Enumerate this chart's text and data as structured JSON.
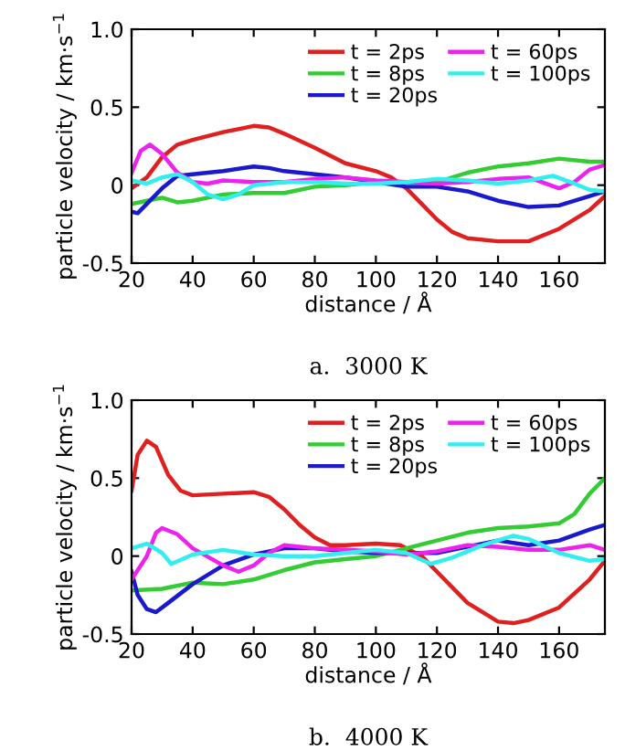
{
  "chart_data": [
    {
      "type": "line",
      "xlabel": "distance / Å",
      "ylabel": "particle velocity / km·s$^{−1}$",
      "annotations": [
        "a.  3000 K"
      ],
      "xlim": [
        20,
        175
      ],
      "xticks": [
        20,
        40,
        60,
        80,
        100,
        120,
        140,
        160
      ],
      "ylim": [
        -0.5,
        1.0
      ],
      "yticks": [
        -0.5,
        0,
        0.5,
        {
          "value": 1.0,
          "label": "1.0"
        }
      ],
      "legend": "top right",
      "grid": false,
      "marker": "none",
      "line_style": "solid",
      "series": [
        {
          "name": "t = 2ps",
          "color": "#e02020",
          "x": [
            20,
            25,
            30,
            35,
            40,
            50,
            60,
            65,
            70,
            80,
            90,
            100,
            105,
            110,
            115,
            120,
            125,
            130,
            140,
            150,
            160,
            170,
            175
          ],
          "values": [
            -0.02,
            0.05,
            0.18,
            0.26,
            0.29,
            0.34,
            0.38,
            0.37,
            0.33,
            0.24,
            0.14,
            0.09,
            0.05,
            -0.02,
            -0.12,
            -0.22,
            -0.3,
            -0.34,
            -0.36,
            -0.36,
            -0.28,
            -0.16,
            -0.07
          ]
        },
        {
          "name": "t = 8ps",
          "color": "#33cc33",
          "x": [
            20,
            25,
            30,
            35,
            40,
            50,
            60,
            70,
            80,
            90,
            100,
            110,
            120,
            130,
            140,
            150,
            160,
            170,
            175
          ],
          "values": [
            -0.12,
            -0.1,
            -0.08,
            -0.11,
            -0.1,
            -0.06,
            -0.05,
            -0.05,
            -0.01,
            0.0,
            0.02,
            0.02,
            0.02,
            0.08,
            0.12,
            0.14,
            0.17,
            0.15,
            0.15
          ]
        },
        {
          "name": "t = 20ps",
          "color": "#1a1acc",
          "x": [
            20,
            22,
            25,
            30,
            35,
            40,
            50,
            60,
            65,
            70,
            80,
            90,
            100,
            110,
            120,
            130,
            140,
            150,
            160,
            170,
            175
          ],
          "values": [
            -0.17,
            -0.18,
            -0.12,
            -0.02,
            0.06,
            0.07,
            0.09,
            0.12,
            0.11,
            0.09,
            0.07,
            0.05,
            0.02,
            -0.01,
            -0.01,
            -0.04,
            -0.1,
            -0.14,
            -0.13,
            -0.07,
            -0.04
          ]
        },
        {
          "name": "t = 60ps",
          "color": "#ee22ee",
          "x": [
            20,
            23,
            26,
            30,
            35,
            40,
            45,
            50,
            60,
            70,
            80,
            90,
            100,
            110,
            120,
            130,
            140,
            150,
            160,
            165,
            170,
            175
          ],
          "values": [
            0.08,
            0.22,
            0.26,
            0.2,
            0.08,
            0.02,
            0.01,
            0.03,
            0.02,
            0.02,
            0.04,
            0.05,
            0.03,
            0.02,
            0.01,
            0.02,
            0.04,
            0.05,
            -0.02,
            0.02,
            0.1,
            0.13
          ]
        },
        {
          "name": "t = 100ps",
          "color": "#33eeee",
          "x": [
            20,
            25,
            30,
            35,
            40,
            45,
            50,
            55,
            60,
            70,
            80,
            90,
            100,
            110,
            120,
            130,
            140,
            150,
            158,
            165,
            170,
            175
          ],
          "values": [
            0.03,
            0.01,
            0.05,
            0.07,
            0.02,
            -0.06,
            -0.09,
            -0.06,
            0.0,
            0.02,
            0.02,
            0.01,
            0.01,
            0.02,
            0.04,
            0.03,
            0.01,
            0.03,
            0.06,
            0.01,
            -0.03,
            -0.04
          ]
        }
      ]
    },
    {
      "type": "line",
      "xlabel": "distance / Å",
      "ylabel": "particle velocity / km·s$^{−1}$",
      "annotations": [
        "b.  4000 K"
      ],
      "xlim": [
        20,
        175
      ],
      "xticks": [
        20,
        40,
        60,
        80,
        100,
        120,
        140,
        160
      ],
      "ylim": [
        -0.5,
        1.0
      ],
      "yticks": [
        -0.5,
        0,
        0.5,
        {
          "value": 1.0,
          "label": "1.0"
        }
      ],
      "legend": "top right",
      "grid": false,
      "marker": "none",
      "line_style": "solid",
      "series": [
        {
          "name": "t = 2ps",
          "color": "#e02020",
          "x": [
            20,
            22,
            25,
            28,
            32,
            36,
            40,
            50,
            60,
            65,
            70,
            75,
            80,
            85,
            90,
            100,
            108,
            115,
            120,
            130,
            140,
            145,
            150,
            160,
            170,
            175
          ],
          "values": [
            0.42,
            0.65,
            0.74,
            0.7,
            0.52,
            0.42,
            0.39,
            0.4,
            0.41,
            0.38,
            0.3,
            0.2,
            0.12,
            0.07,
            0.07,
            0.08,
            0.07,
            0.0,
            -0.1,
            -0.3,
            -0.42,
            -0.43,
            -0.41,
            -0.33,
            -0.15,
            -0.03
          ]
        },
        {
          "name": "t = 8ps",
          "color": "#33cc33",
          "x": [
            20,
            30,
            40,
            50,
            60,
            70,
            80,
            90,
            100,
            110,
            120,
            130,
            140,
            150,
            160,
            165,
            170,
            175
          ],
          "values": [
            -0.22,
            -0.21,
            -0.17,
            -0.18,
            -0.15,
            -0.09,
            -0.04,
            -0.02,
            0.0,
            0.05,
            0.1,
            0.15,
            0.18,
            0.19,
            0.21,
            0.27,
            0.4,
            0.5
          ]
        },
        {
          "name": "t = 20ps",
          "color": "#1a1acc",
          "x": [
            20,
            22,
            25,
            28,
            32,
            40,
            50,
            60,
            70,
            80,
            90,
            100,
            110,
            120,
            130,
            140,
            150,
            160,
            170,
            175
          ],
          "values": [
            -0.1,
            -0.25,
            -0.34,
            -0.36,
            -0.3,
            -0.18,
            -0.06,
            0.01,
            0.05,
            0.05,
            0.03,
            0.02,
            0.02,
            0.02,
            0.06,
            0.1,
            0.07,
            0.1,
            0.17,
            0.2
          ]
        },
        {
          "name": "t = 60ps",
          "color": "#ee22ee",
          "x": [
            20,
            25,
            28,
            30,
            35,
            40,
            50,
            55,
            60,
            65,
            70,
            80,
            90,
            100,
            110,
            120,
            130,
            140,
            150,
            160,
            170,
            175
          ],
          "values": [
            -0.15,
            0.0,
            0.15,
            0.18,
            0.14,
            0.05,
            -0.06,
            -0.1,
            -0.06,
            0.02,
            0.07,
            0.05,
            0.04,
            0.03,
            0.01,
            0.03,
            0.07,
            0.06,
            0.04,
            0.04,
            0.07,
            0.04
          ]
        },
        {
          "name": "t = 100ps",
          "color": "#33eeee",
          "x": [
            20,
            25,
            30,
            33,
            40,
            50,
            60,
            70,
            80,
            90,
            100,
            110,
            118,
            125,
            135,
            145,
            150,
            160,
            170,
            175
          ],
          "values": [
            0.05,
            0.08,
            0.02,
            -0.05,
            0.01,
            0.04,
            0.01,
            0.0,
            0.0,
            0.02,
            0.04,
            0.02,
            -0.05,
            -0.01,
            0.07,
            0.13,
            0.11,
            0.02,
            -0.03,
            -0.02
          ]
        }
      ]
    }
  ]
}
